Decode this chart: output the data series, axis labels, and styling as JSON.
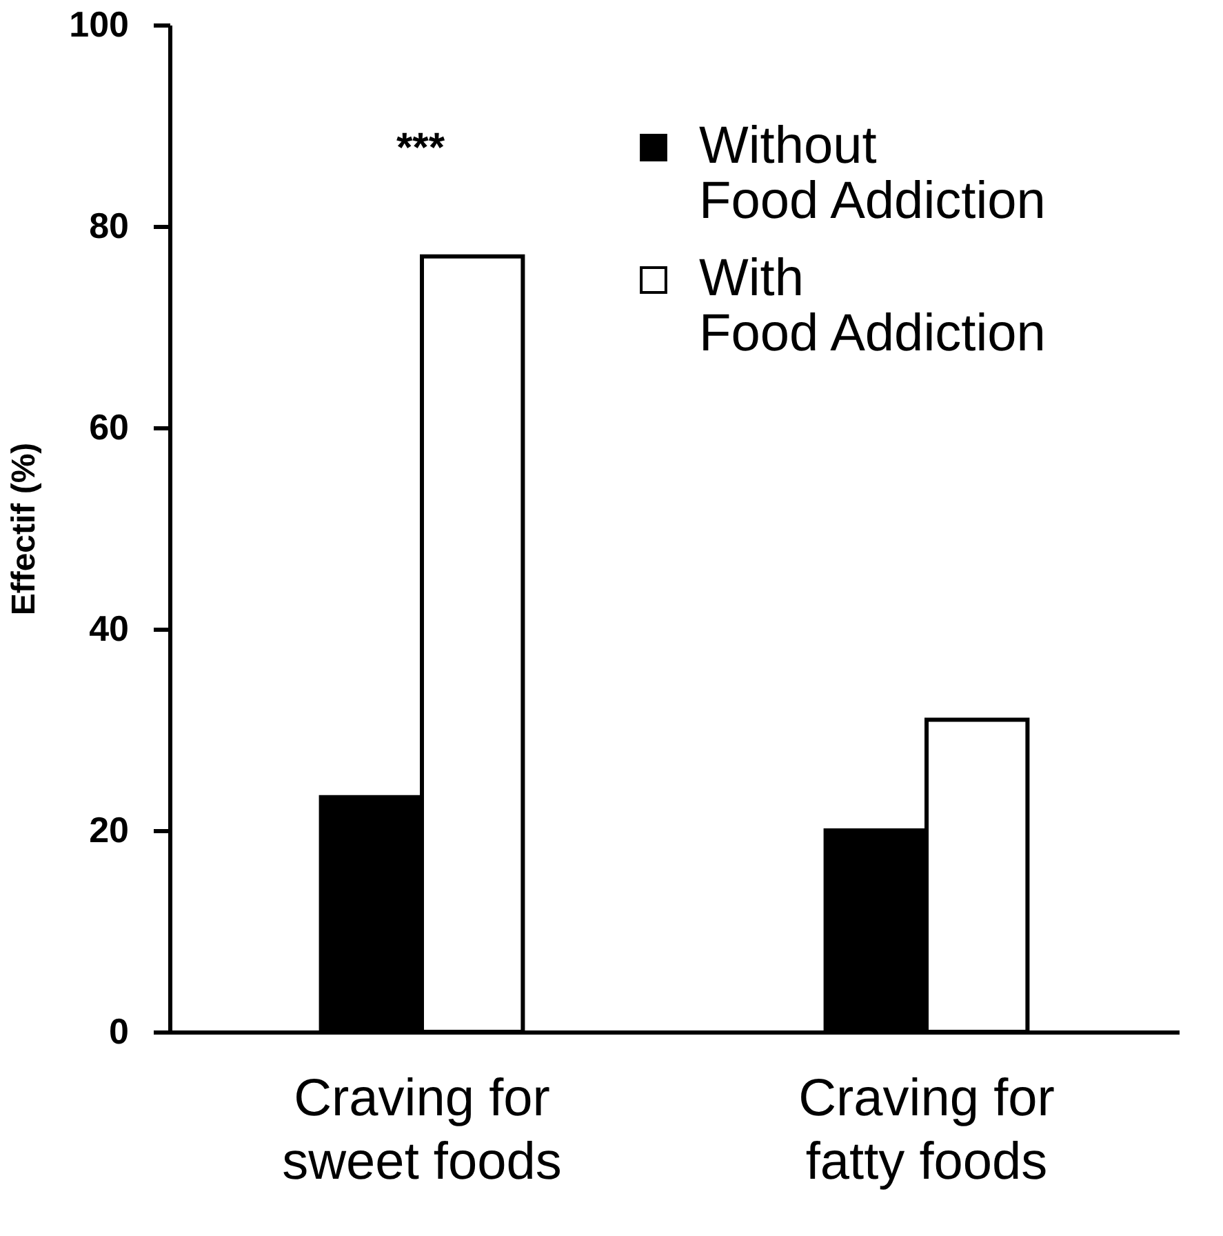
{
  "chart_data": {
    "type": "bar",
    "ylabel": "Effectif (%)",
    "categories": [
      "Craving for sweet foods",
      "Craving for fatty foods"
    ],
    "series": [
      {
        "name": "Without Food Addiction",
        "color": "#000000",
        "values": [
          23.3,
          20
        ]
      },
      {
        "name": "With Food Addiction",
        "color": "#ffffff",
        "values": [
          77,
          31
        ]
      }
    ],
    "ylim": [
      0,
      100
    ],
    "yticks": [
      0,
      20,
      40,
      60,
      80,
      100
    ],
    "grid": false,
    "legend": "top right",
    "annotations": [
      "***"
    ]
  }
}
